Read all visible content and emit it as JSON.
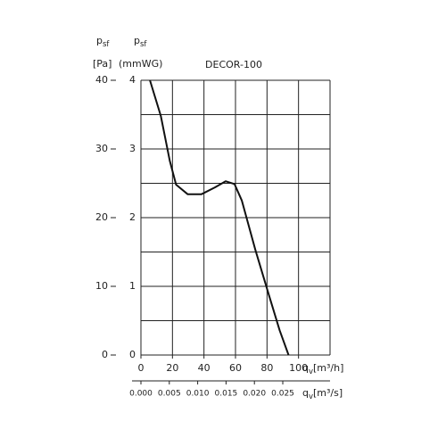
{
  "chart_data": {
    "type": "line",
    "title": "DECOR-100",
    "ylabel": {
      "symbol": "p",
      "subscript": "sf",
      "unit": "[Pa]"
    },
    "y2label": {
      "symbol": "p",
      "subscript": "sf",
      "unit": "(mmWG)"
    },
    "xlabel": {
      "symbol": "q",
      "subscript": "v",
      "unit": "[m³/h]"
    },
    "x2label": {
      "symbol": "q",
      "subscript": "v",
      "unit": "[m³/s]"
    },
    "xlim": [
      0,
      120
    ],
    "xticks": [
      0,
      20,
      40,
      60,
      80,
      100
    ],
    "xgrid": [
      0,
      20,
      40,
      60,
      80,
      100,
      120
    ],
    "x2lim": [
      0,
      0.03333
    ],
    "x2ticks": [
      {
        "value": 0,
        "label": "0.000"
      },
      {
        "value": 0.005,
        "label": "0.005"
      },
      {
        "value": 0.01,
        "label": "0.010"
      },
      {
        "value": 0.015,
        "label": "0.015"
      },
      {
        "value": 0.02,
        "label": "0.020"
      },
      {
        "value": 0.025,
        "label": "0.025"
      }
    ],
    "ylim": [
      0,
      40
    ],
    "yticks": [
      0,
      10,
      20,
      30,
      40
    ],
    "ygrid": [
      0,
      5,
      10,
      15,
      20,
      25,
      30,
      35,
      40
    ],
    "y2lim": [
      0,
      4
    ],
    "y2ticks": [
      0,
      1,
      2,
      3,
      4
    ],
    "grid": true,
    "series": [
      {
        "name": "DECOR-100",
        "color": "#111111",
        "x": [
          5.7,
          12.6,
          18.3,
          22.3,
          29.7,
          38.3,
          46.9,
          53.7,
          59.4,
          64,
          72.6,
          81.1,
          88,
          93.7
        ],
        "values": [
          40,
          34.8,
          28.3,
          24.8,
          23.4,
          23.4,
          24.4,
          25.3,
          24.9,
          22.5,
          15.3,
          8.8,
          3.6,
          0
        ]
      }
    ]
  }
}
